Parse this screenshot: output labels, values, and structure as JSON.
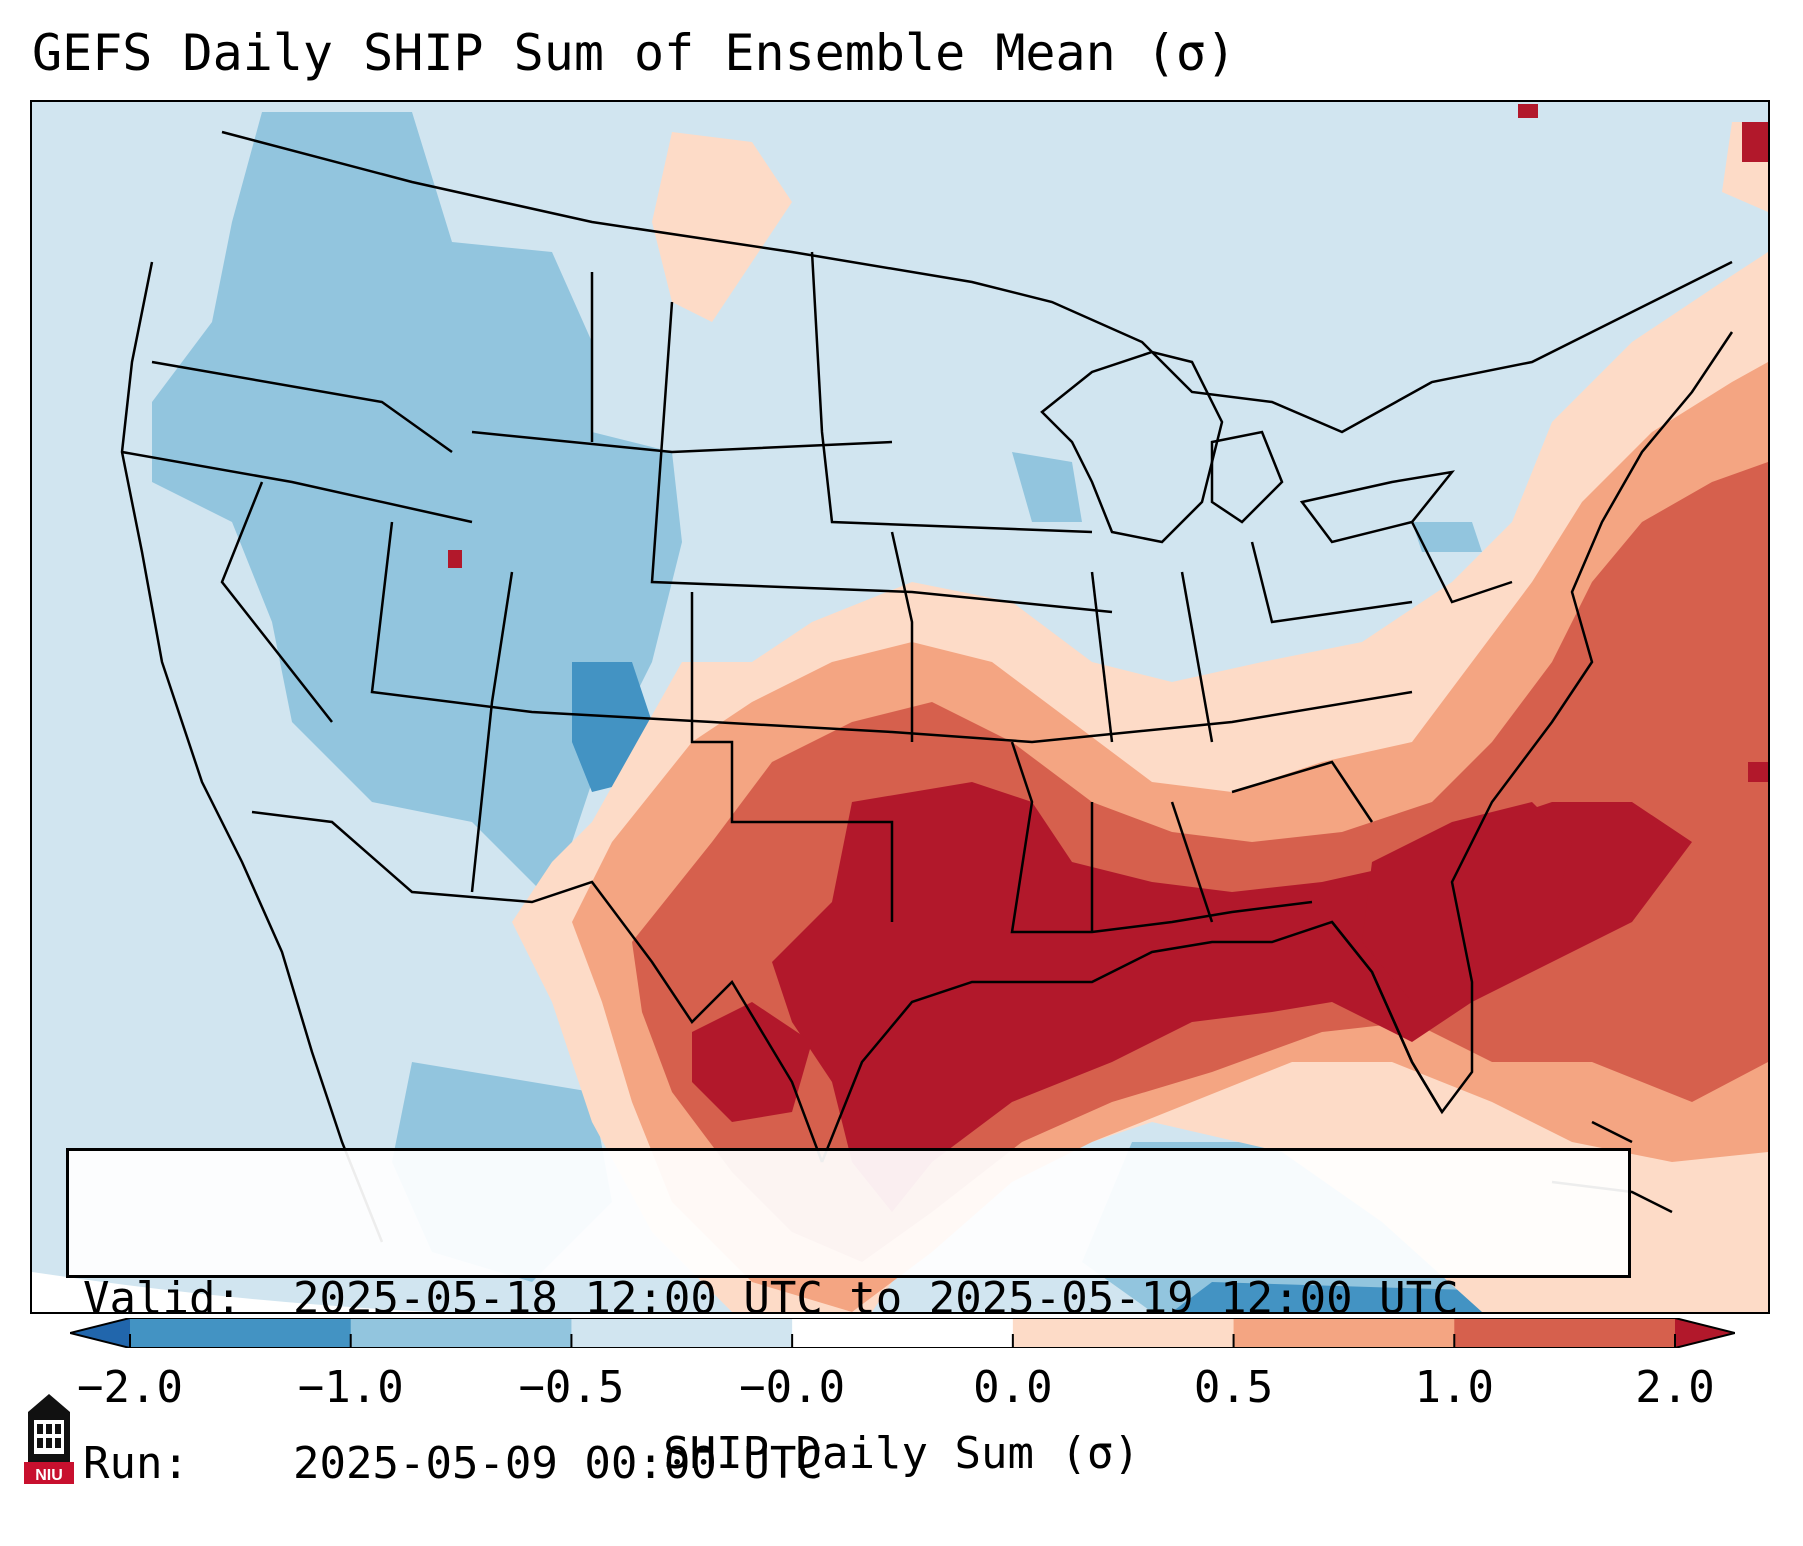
{
  "title": "GEFS Daily SHIP Sum of Ensemble Mean (σ)",
  "info": {
    "valid_label": "Valid:",
    "valid_value": "2025-05-18 12:00 UTC to 2025-05-19 12:00 UTC",
    "run_label": "Run:",
    "run_value": "2025-05-09 00:00 UTC"
  },
  "colorbar": {
    "label": "SHIP Daily Sum (σ)",
    "ticks": [
      "−2.0",
      "−1.0",
      "−0.5",
      "−0.0",
      "0.0",
      "0.5",
      "1.0",
      "2.0"
    ],
    "colors": [
      "#2166ac",
      "#4393c3",
      "#92c5de",
      "#d1e5f0",
      "#fddbc7",
      "#f4a582",
      "#d6604d",
      "#b2182b"
    ],
    "extend": "both"
  },
  "logo": {
    "icon": "niu-logo-icon",
    "text": "NIU"
  },
  "map": {
    "region": "Contiguous United States",
    "projection": "Lambert Conformal",
    "background_color": "#d1e5f0",
    "high_value_region": "Southern Plains to Southeast US and western Atlantic",
    "low_value_region": "Western US, Gulf of Mexico / Caribbean"
  }
}
